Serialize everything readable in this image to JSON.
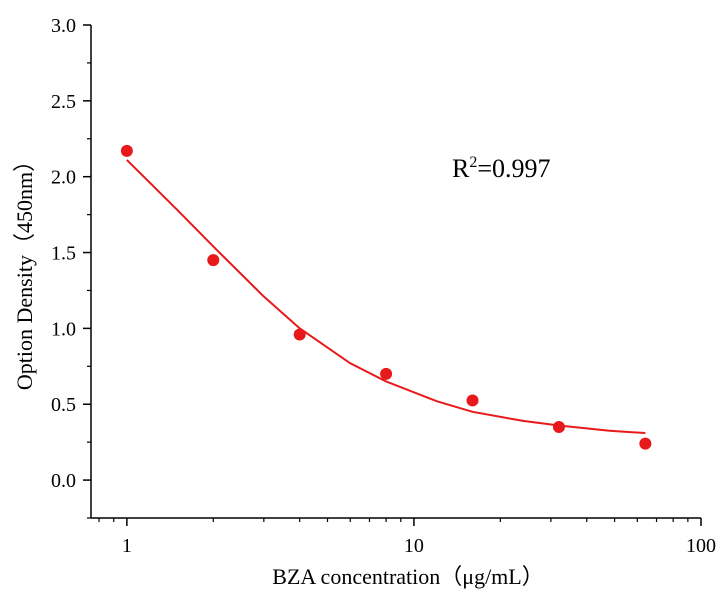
{
  "chart_data": {
    "type": "scatter",
    "xlabel": "BZA concentration（μg/mL）",
    "ylabel": "Option Density（450nm）",
    "x_scale": "log",
    "xlim": [
      0.75,
      100
    ],
    "ylim": [
      -0.25,
      3.0
    ],
    "x_ticks": [
      {
        "value": 1,
        "label": "1"
      },
      {
        "value": 10,
        "label": "10"
      },
      {
        "value": 100,
        "label": "100"
      }
    ],
    "y_ticks": [
      {
        "value": 0.0,
        "label": "0.0"
      },
      {
        "value": 0.5,
        "label": "0.5"
      },
      {
        "value": 1.0,
        "label": "1.0"
      },
      {
        "value": 1.5,
        "label": "1.5"
      },
      {
        "value": 2.0,
        "label": "2.0"
      },
      {
        "value": 2.5,
        "label": "2.5"
      },
      {
        "value": 3.0,
        "label": "3.0"
      }
    ],
    "grid": false,
    "marker_color": "#e8191b",
    "fit_color": "#e8191b",
    "points": [
      {
        "x": 1,
        "y": 2.17
      },
      {
        "x": 2,
        "y": 1.45
      },
      {
        "x": 4,
        "y": 0.96
      },
      {
        "x": 8,
        "y": 0.7
      },
      {
        "x": 16,
        "y": 0.525
      },
      {
        "x": 32,
        "y": 0.35
      },
      {
        "x": 64,
        "y": 0.24
      }
    ],
    "fit_curve": [
      {
        "x": 1,
        "y": 2.11
      },
      {
        "x": 1.5,
        "y": 1.78
      },
      {
        "x": 2,
        "y": 1.54
      },
      {
        "x": 3,
        "y": 1.21
      },
      {
        "x": 4,
        "y": 1.0
      },
      {
        "x": 6,
        "y": 0.77
      },
      {
        "x": 8,
        "y": 0.65
      },
      {
        "x": 12,
        "y": 0.52
      },
      {
        "x": 16,
        "y": 0.45
      },
      {
        "x": 24,
        "y": 0.39
      },
      {
        "x": 32,
        "y": 0.36
      },
      {
        "x": 48,
        "y": 0.325
      },
      {
        "x": 64,
        "y": 0.31
      }
    ],
    "annotation": {
      "prefix": "R",
      "sup": "2",
      "suffix": "=0.997"
    }
  }
}
